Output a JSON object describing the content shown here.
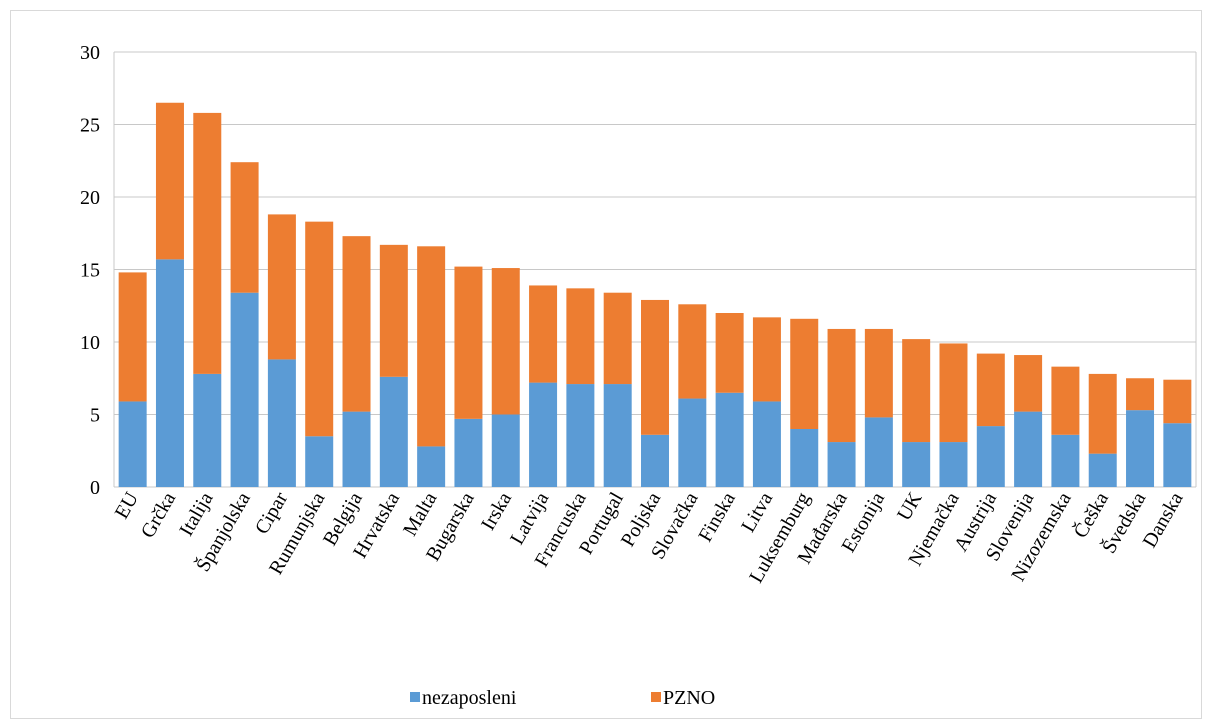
{
  "chart_data": {
    "type": "bar",
    "stacked": true,
    "categories": [
      "EU",
      "Grčka",
      "Italija",
      "Španjolska",
      "Cipar",
      "Rumunjska",
      "Belgija",
      "Hrvatska",
      "Malta",
      "Bugarska",
      "Irska",
      "Latvija",
      "Francuska",
      "Portugal",
      "Poljska",
      "Slovačka",
      "Finska",
      "Litva",
      "Luksemburg",
      "Mađarska",
      "Estonija",
      "UK",
      "Njemačka",
      "Austrija",
      "Slovenija",
      "Nizozemska",
      "Češka",
      "Švedska",
      "Danska"
    ],
    "series": [
      {
        "name": "nezaposleni",
        "color": "#5B9BD5",
        "values": [
          5.9,
          15.7,
          7.8,
          13.4,
          8.8,
          3.5,
          5.2,
          7.6,
          2.8,
          4.7,
          5.0,
          7.2,
          7.1,
          7.1,
          3.6,
          6.1,
          6.5,
          5.9,
          4.0,
          3.1,
          4.8,
          3.1,
          3.1,
          4.2,
          5.2,
          3.6,
          2.3,
          5.3,
          4.4
        ]
      },
      {
        "name": "PZNO",
        "color": "#ED7D31",
        "values": [
          8.9,
          10.8,
          18.0,
          9.0,
          10.0,
          14.8,
          12.1,
          9.1,
          13.8,
          10.5,
          10.1,
          6.7,
          6.6,
          6.3,
          9.3,
          6.5,
          5.5,
          5.8,
          7.6,
          7.8,
          6.1,
          7.1,
          6.8,
          5.0,
          3.9,
          4.7,
          5.5,
          2.2,
          3.0
        ]
      }
    ],
    "ylim": [
      0,
      30
    ],
    "yticks": [
      "0",
      "5",
      "10",
      "15",
      "20",
      "25",
      "30"
    ],
    "grid": true,
    "legend": "bottom-center"
  }
}
